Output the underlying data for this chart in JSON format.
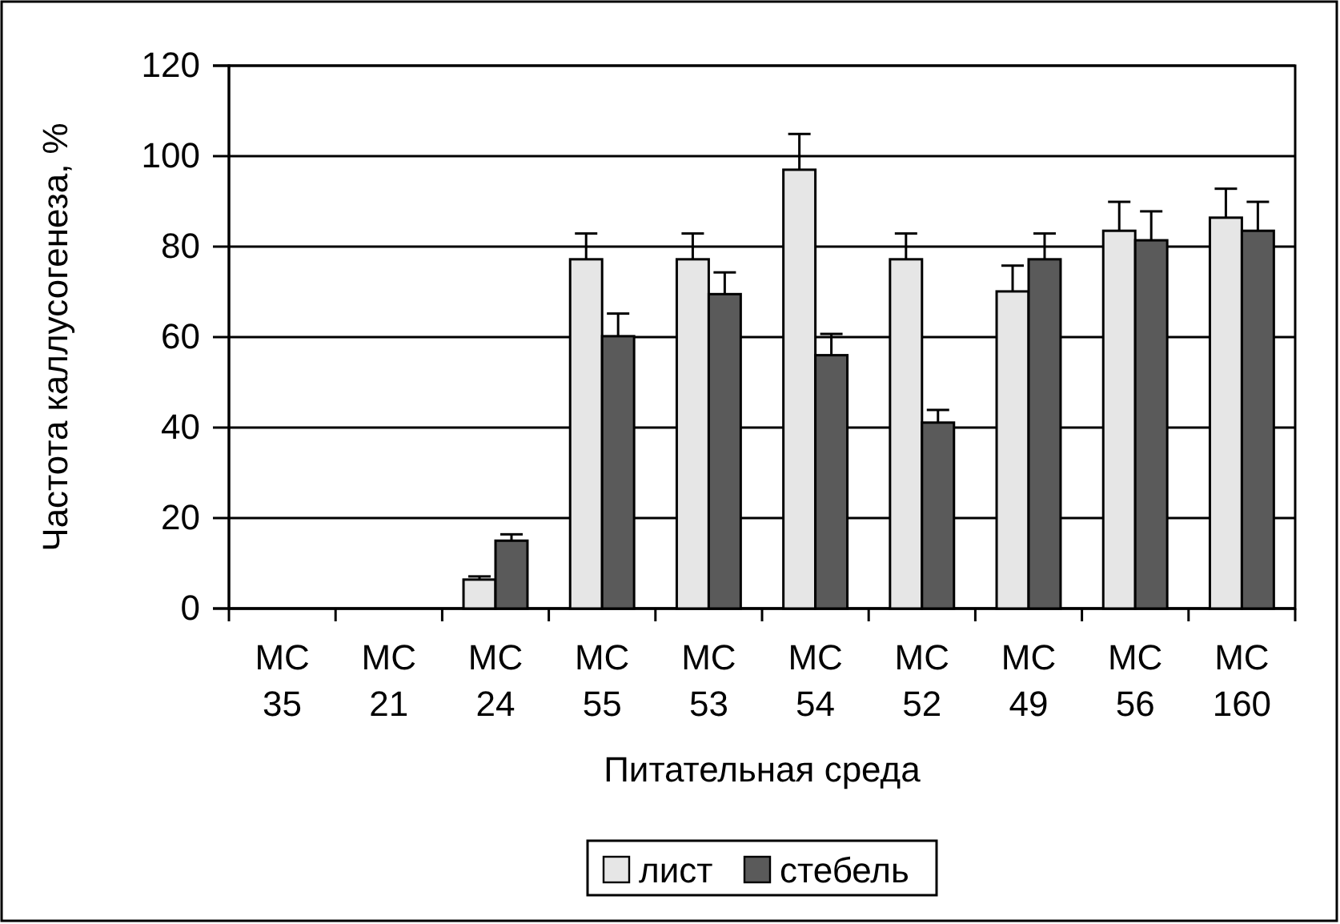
{
  "chart_data": {
    "type": "bar",
    "xlabel": "Питательная среда",
    "ylabel": "Частота каллусогенеза, %",
    "categories": [
      "МС 35",
      "МС 21",
      "МС 24",
      "МС 55",
      "МС 53",
      "МС 54",
      "МС 52",
      "МС 49",
      "МС 56",
      "МС 160"
    ],
    "series": [
      {
        "name": "лист",
        "color": "#e6e6e6",
        "values": [
          0,
          0,
          6.4,
          77.2,
          77.2,
          97,
          77.2,
          70.1,
          83.5,
          86.4
        ],
        "errors": [
          null,
          null,
          0.7,
          5.7,
          5.7,
          7.9,
          5.7,
          5.7,
          6.4,
          6.4
        ]
      },
      {
        "name": "стебель",
        "color": "#5a5a5a",
        "values": [
          0,
          0,
          15,
          60.2,
          69.5,
          56,
          41.1,
          77.2,
          81.4,
          83.5
        ],
        "errors": [
          null,
          null,
          1.4,
          5,
          4.8,
          4.7,
          2.8,
          5.7,
          6.4,
          6.4
        ]
      }
    ],
    "ylim": [
      0,
      120
    ],
    "yticks": [
      0,
      20,
      40,
      60,
      80,
      100,
      120
    ],
    "grid": "y",
    "legend": "bottom"
  }
}
